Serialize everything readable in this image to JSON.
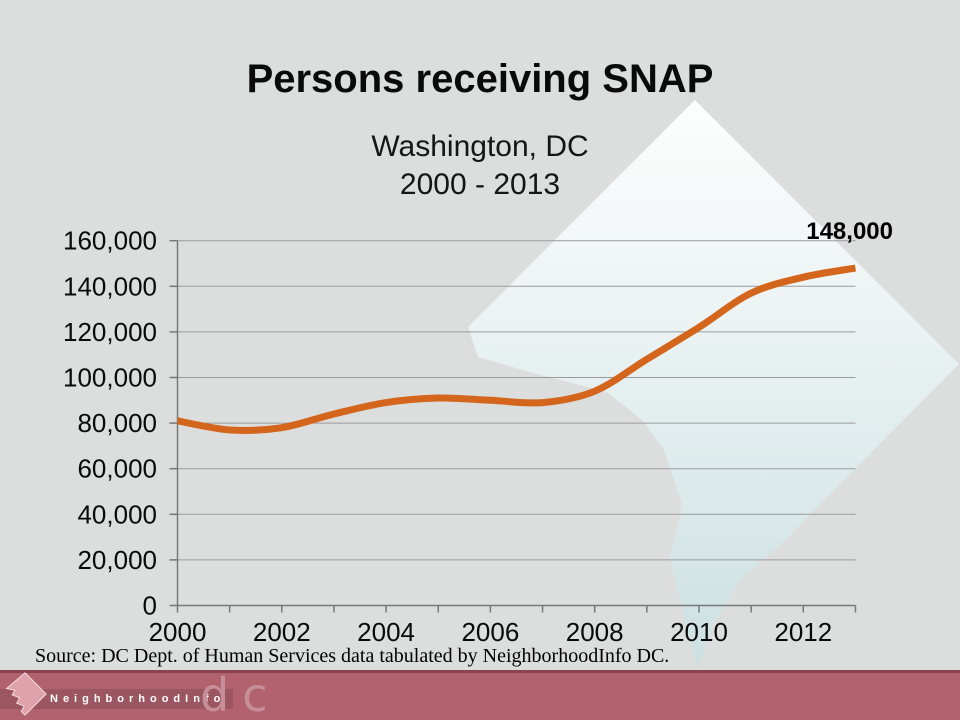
{
  "slide": {
    "title": "Persons receiving SNAP",
    "subtitle_line1": "Washington, DC",
    "subtitle_line2": "2000 - 2013",
    "source_note": "Source: DC Dept. of Human Services data tabulated by NeighborhoodInfo DC."
  },
  "chart_data": {
    "type": "line",
    "title": "Persons receiving SNAP",
    "subtitle": "Washington, DC 2000 - 2013",
    "x": [
      2000,
      2001,
      2002,
      2003,
      2004,
      2005,
      2006,
      2007,
      2008,
      2009,
      2010,
      2011,
      2012,
      2013
    ],
    "series": [
      {
        "name": "Persons receiving SNAP",
        "values": [
          81000,
          77000,
          78000,
          84000,
          89000,
          91000,
          90000,
          89000,
          94000,
          108000,
          122000,
          137000,
          144000,
          148000
        ]
      }
    ],
    "ylim": [
      0,
      160000
    ],
    "ytick_interval": 20000,
    "ytick_labels": [
      "0",
      "20,000",
      "40,000",
      "60,000",
      "80,000",
      "100,000",
      "120,000",
      "140,000",
      "160,000"
    ],
    "xtick_labels": [
      "2000",
      "2002",
      "2004",
      "2006",
      "2008",
      "2010",
      "2012"
    ],
    "grid": "horizontal",
    "legend": "none",
    "annotation": {
      "text": "148,000",
      "x": 2013,
      "y": 148000
    }
  },
  "footer": {
    "brand_name": "NeighborhoodInfo",
    "brand_suffix": "dc",
    "logo": "dc-diamond-logo"
  },
  "colors": {
    "background": "#dcdddd",
    "line": "#d4651c",
    "grid": "#9b9b9b",
    "axis": "#787878",
    "text": "#0a0a0a",
    "watermark_top": "#ffffff",
    "watermark_mid": "#eef5f5",
    "watermark_bottom": "#cbe0e2",
    "footer_bar": "#b2626c",
    "footer_bar_top_edge": "#8a4450",
    "footer_band": "#9c5661",
    "footer_diamond": "#dfa1ab",
    "footer_dc_text": "#c68e99"
  }
}
